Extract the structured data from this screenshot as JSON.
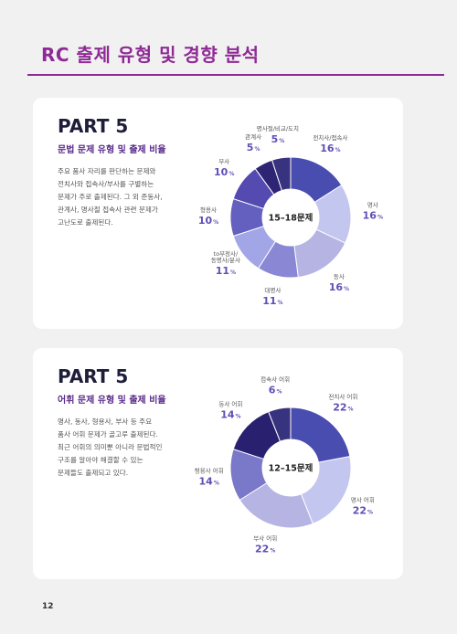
{
  "page_title": "RC 출제 유형 및 경향 분석",
  "page_number": "12",
  "sections": [
    {
      "part": "PART 5",
      "subtitle": "문법 문제 유형 및 출제 비율",
      "body_lines": [
        "주요 품사 자리를 판단하는 문제와",
        "전치사와 접속사/부사를 구별하는",
        "문제가 주로 출제된다. 그 외 준동사,",
        "관계사, 명사절 접속사 관련 문제가",
        "고난도로 출제된다."
      ],
      "center": "15–18문제",
      "chart_data": {
        "type": "pie",
        "categories": [
          "전치사/접속사",
          "명사",
          "동사",
          "대명사",
          "to부정사/동명사/분사",
          "형용사",
          "부사",
          "관계사",
          "명사절/비교/도치"
        ],
        "values": [
          16,
          16,
          16,
          11,
          11,
          10,
          10,
          5,
          5
        ],
        "unit": "%",
        "colors": [
          "#4a4db0",
          "#c3c6ef",
          "#b6b4e3",
          "#8a88d4",
          "#a2a6e6",
          "#6460bf",
          "#544ab0",
          "#2d2474",
          "#38337e"
        ]
      }
    },
    {
      "part": "PART 5",
      "subtitle": "어휘 문제 유형 및 출제 비율",
      "body_lines": [
        "명사, 동사, 형용사, 부사 등 주요",
        "품사 어휘 문제가 골고루 출제된다.",
        "최근 어휘의 의미뿐 아니라 문법적인",
        "구조를 알아야 해결할 수 있는",
        "문제들도 출제되고 있다."
      ],
      "center": "12–15문제",
      "chart_data": {
        "type": "pie",
        "categories": [
          "전치사 어휘",
          "명사 어휘",
          "부사 어휘",
          "형용사 어휘",
          "동사 어휘",
          "접속사 어휘"
        ],
        "values": [
          22,
          22,
          22,
          14,
          14,
          6
        ],
        "unit": "%",
        "colors": [
          "#4a4db0",
          "#c3c6ef",
          "#b6b4e3",
          "#7a78c8",
          "#2a2070",
          "#38337e"
        ]
      }
    }
  ]
}
